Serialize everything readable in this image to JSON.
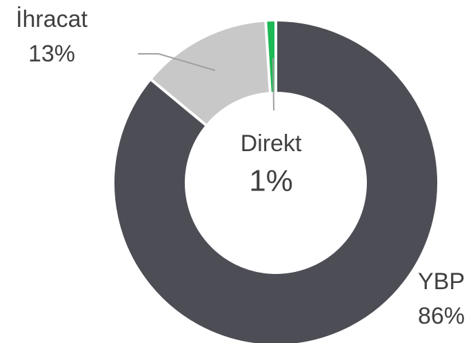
{
  "chart_data": {
    "type": "donut",
    "categories": [
      "YBP",
      "İhracat",
      "Direkt"
    ],
    "values": [
      86,
      13,
      1
    ],
    "value_labels": [
      "86%",
      "13%",
      "1%"
    ],
    "colors": [
      "#4d4e55",
      "#c8c8c8",
      "#1db954"
    ]
  }
}
